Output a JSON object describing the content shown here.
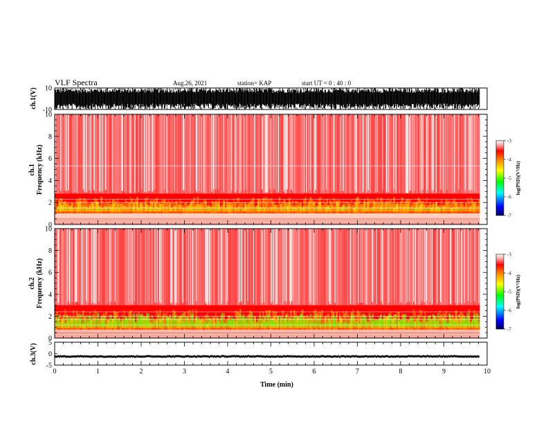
{
  "header": {
    "title": "VLF Spectra",
    "date": "Aug.26, 2021",
    "station": "station= KAP",
    "start": "start  UT =   0  : 40 : 0"
  },
  "chart_data": [
    {
      "type": "line",
      "name": "ch1-waveform",
      "ylabel": "ch.1(V)",
      "ylim": [
        -10,
        10
      ],
      "tick_labels": [
        "10",
        "-10"
      ],
      "xlim": [
        0,
        10
      ],
      "data_extent_min": 9.83,
      "note_level": "saturated, swinging between -10 and 10"
    },
    {
      "type": "heatmap",
      "name": "ch1-spectrogram",
      "ylabel": "ch.1\nFrequency  (kHz)",
      "ylabel_lines": [
        "ch.1",
        "Frequency  (kHz)"
      ],
      "xlim": [
        0,
        10
      ],
      "ylim": [
        0,
        10
      ],
      "ytick_labels": [
        "0",
        "2",
        "4",
        "6",
        "8",
        "10"
      ],
      "band_kHz": [
        1.0,
        2.8
      ],
      "colorbar": {
        "label": "log(PSD)(V²/Hz)",
        "ticks": [
          "-3",
          "-4",
          "-5",
          "-6",
          "-7"
        ],
        "range": [
          -7,
          -3
        ]
      }
    },
    {
      "type": "heatmap",
      "name": "ch2-spectrogram",
      "ylabel_lines": [
        "ch.2",
        "Frequency  (kHz)"
      ],
      "xlim": [
        0,
        10
      ],
      "ylim": [
        0,
        10
      ],
      "ytick_labels": [
        "0",
        "2",
        "4",
        "6",
        "8",
        "10"
      ],
      "band_kHz": [
        0.7,
        3.0
      ],
      "colorbar": {
        "label": "log(PSD)(V²/Hz)",
        "ticks": [
          "-3",
          "-4",
          "-5",
          "-6",
          "-7"
        ],
        "range": [
          -7,
          -3
        ]
      }
    },
    {
      "type": "line",
      "name": "ch3-waveform",
      "ylabel": "ch.3(V)",
      "ylim": [
        -5,
        5
      ],
      "tick_labels": [
        "5",
        "0",
        "-5"
      ],
      "level": -1.2,
      "xlim": [
        0,
        10
      ],
      "xlabel": "Time  (min)",
      "xtick_labels": [
        "0",
        "1",
        "2",
        "3",
        "4",
        "5",
        "6",
        "7",
        "8",
        "9",
        "10"
      ]
    }
  ],
  "colors": {
    "background": "#ffffff",
    "spectrum_low": "#ff0000",
    "spectrum_mid": "#ffa500",
    "spectrum_high": "#00ff00",
    "trace": "#000000"
  }
}
